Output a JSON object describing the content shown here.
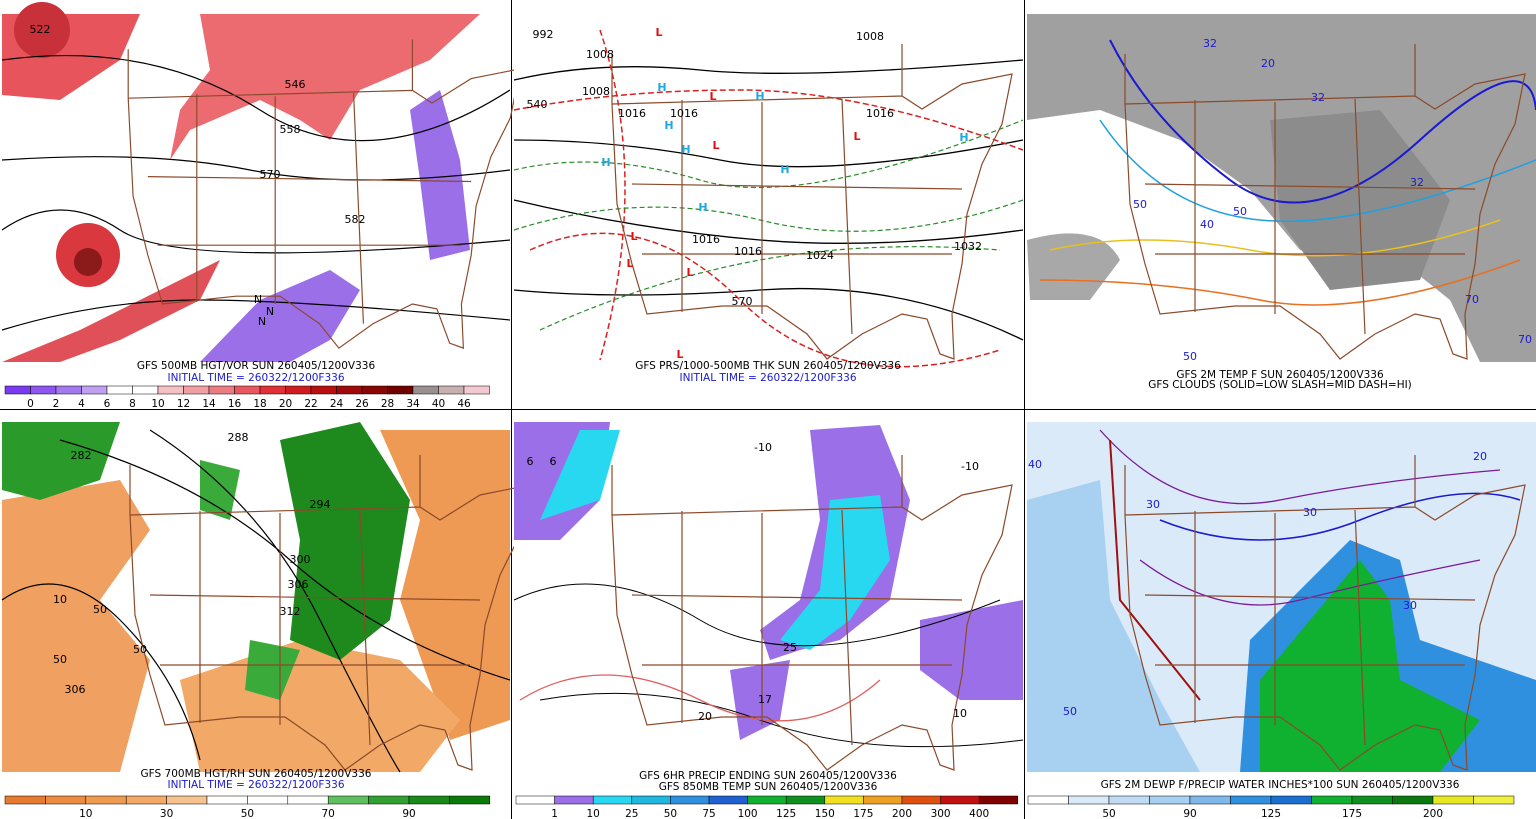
{
  "panels": [
    {
      "caption": [
        "GFS 500MB HGT/VOR SUN 260405/1200V336",
        "INITIAL TIME = 260322/1200F336"
      ],
      "colorbar": [
        "0",
        "2",
        "4",
        "6",
        "8",
        "10",
        "12",
        "14",
        "16",
        "18",
        "20",
        "22",
        "24",
        "26",
        "28",
        "34",
        "40",
        "46"
      ],
      "map_labels": [
        "522",
        "546",
        "558",
        "570",
        "582",
        "N",
        "N",
        "N"
      ]
    },
    {
      "caption": [
        "GFS PRS/1000-500MB THK SUN 260405/1200V336",
        "INITIAL TIME = 260322/1200F336"
      ],
      "map_labels": [
        "992",
        "1008",
        "1008",
        "1008",
        "1016",
        "1016",
        "1016",
        "540",
        "1016",
        "1016",
        "1024",
        "1032",
        "570"
      ],
      "lows": [
        "L",
        "L",
        "L",
        "L",
        "L",
        "L",
        "L",
        "L"
      ],
      "highs": [
        "H",
        "H",
        "H",
        "H",
        "H",
        "H",
        "H",
        "H"
      ]
    },
    {
      "caption": [
        "GFS 2M TEMP F SUN 260405/1200V336",
        "GFS CLOUDS (SOLID=LOW SLASH=MID DASH=HI)"
      ],
      "map_labels": [
        "32",
        "32",
        "32",
        "50",
        "50",
        "70",
        "70",
        "50",
        "20",
        "40"
      ]
    },
    {
      "caption": [
        "GFS 700MB HGT/RH SUN 260405/1200V336",
        "INITIAL TIME = 260322/1200F336"
      ],
      "colorbar": [
        "10",
        "30",
        "50",
        "70",
        "90"
      ],
      "map_labels": [
        "282",
        "288",
        "294",
        "300",
        "306",
        "312",
        "306",
        "10",
        "50",
        "50",
        "50"
      ]
    },
    {
      "caption": [
        "GFS 6HR PRECIP ENDING SUN 260405/1200V336",
        "GFS 850MB TEMP SUN 260405/1200V336"
      ],
      "colorbar": [
        "1",
        "10",
        "25",
        "50",
        "75",
        "100",
        "125",
        "150",
        "175",
        "200",
        "300",
        "400"
      ],
      "map_labels": [
        "6",
        "6",
        "-10",
        "-10",
        "25",
        "17",
        "20",
        "10"
      ]
    },
    {
      "caption": [
        "GFS 2M DEWP F/PRECIP WATER INCHES*100 SUN 260405/1200V336"
      ],
      "colorbar": [
        "50",
        "90",
        "125",
        "175",
        "200"
      ],
      "map_labels": [
        "30",
        "30",
        "30",
        "50",
        "40",
        "20"
      ]
    }
  ]
}
